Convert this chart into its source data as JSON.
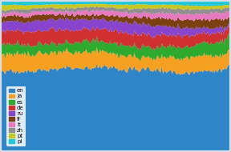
{
  "title": "",
  "languages": [
    "en",
    "ja",
    "es",
    "de",
    "ru",
    "fr",
    "it",
    "zh",
    "pt",
    "pl"
  ],
  "colors": [
    "#2e86c8",
    "#f5a020",
    "#2eaa2e",
    "#d03030",
    "#8844cc",
    "#7b3f10",
    "#e878c0",
    "#909090",
    "#c8c820",
    "#20c8d8"
  ],
  "n_points": 200,
  "base_values": [
    55,
    10,
    7,
    8,
    5,
    4,
    3,
    2.5,
    2.5,
    2
  ],
  "noise_scales": [
    1.5,
    1.2,
    1.0,
    1.2,
    0.9,
    0.7,
    0.5,
    0.5,
    0.5,
    0.4
  ],
  "background_color": "#d8dde8",
  "legend_fontsize": 5.0,
  "ylim": [
    0,
    100
  ],
  "figsize": [
    2.88,
    1.9
  ],
  "dpi": 100
}
